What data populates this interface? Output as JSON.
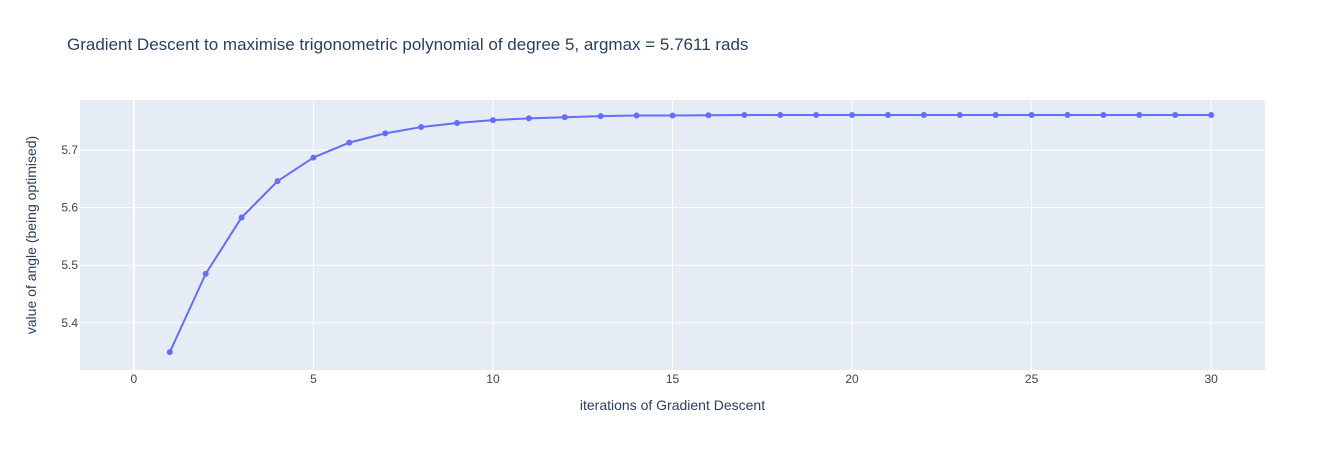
{
  "chart_data": {
    "type": "line",
    "title": "Gradient Descent to maximise trigonometric polynomial of degree 5, argmax = 5.7611 rads",
    "xlabel": "iterations of Gradient Descent",
    "ylabel": "value of angle (being optimised)",
    "xlim": [
      -1.5,
      31.5
    ],
    "ylim": [
      5.318,
      5.787
    ],
    "xticks": [
      0,
      5,
      10,
      15,
      20,
      25,
      30
    ],
    "yticks": [
      5.4,
      5.5,
      5.6,
      5.7
    ],
    "ytick_labels": [
      "5.4",
      "5.5",
      "5.6",
      "5.7"
    ],
    "grid": true,
    "colors": {
      "plot_bg": "#e5ecf6",
      "grid": "#ffffff",
      "line": "#636efa",
      "text": "#2a3f5f",
      "tick_text": "#444444"
    },
    "series": [
      {
        "mode": "lines+markers",
        "x": [
          1,
          2,
          3,
          4,
          5,
          6,
          7,
          8,
          9,
          10,
          11,
          12,
          13,
          14,
          15,
          16,
          17,
          18,
          19,
          20,
          21,
          22,
          23,
          24,
          25,
          26,
          27,
          28,
          29,
          30
        ],
        "y": [
          5.349,
          5.485,
          5.583,
          5.646,
          5.687,
          5.713,
          5.729,
          5.74,
          5.747,
          5.752,
          5.755,
          5.757,
          5.759,
          5.76,
          5.76,
          5.7605,
          5.761,
          5.761,
          5.761,
          5.761,
          5.761,
          5.761,
          5.761,
          5.761,
          5.761,
          5.761,
          5.761,
          5.761,
          5.761,
          5.761
        ]
      }
    ]
  }
}
